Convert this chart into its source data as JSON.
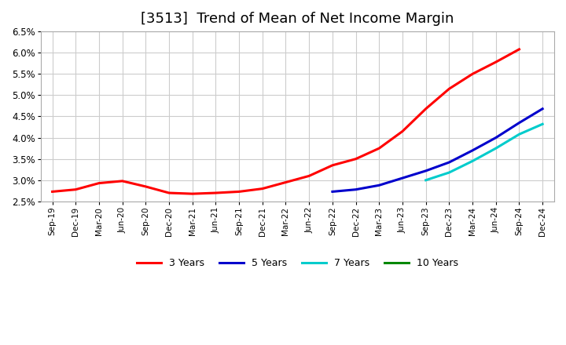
{
  "title": "[3513]  Trend of Mean of Net Income Margin",
  "ylim": [
    2.5,
    6.5
  ],
  "yticks": [
    2.5,
    3.0,
    3.5,
    4.0,
    4.5,
    5.0,
    5.5,
    6.0,
    6.5
  ],
  "x_labels": [
    "Sep-19",
    "Dec-19",
    "Mar-20",
    "Jun-20",
    "Sep-20",
    "Dec-20",
    "Mar-21",
    "Jun-21",
    "Sep-21",
    "Dec-21",
    "Mar-22",
    "Jun-22",
    "Sep-22",
    "Dec-22",
    "Mar-23",
    "Jun-23",
    "Sep-23",
    "Dec-23",
    "Mar-24",
    "Jun-24",
    "Sep-24",
    "Dec-24"
  ],
  "series": {
    "3 Years": {
      "color": "#FF0000",
      "values": [
        2.73,
        2.78,
        2.93,
        2.98,
        2.85,
        2.7,
        2.68,
        2.7,
        2.73,
        2.8,
        2.95,
        3.1,
        3.35,
        3.5,
        3.75,
        4.15,
        4.68,
        5.15,
        5.5,
        5.78,
        6.08,
        null
      ]
    },
    "5 Years": {
      "color": "#0000CC",
      "values": [
        null,
        null,
        null,
        null,
        null,
        null,
        null,
        null,
        null,
        null,
        null,
        null,
        2.73,
        2.78,
        2.88,
        3.05,
        3.22,
        3.42,
        3.7,
        4.0,
        4.35,
        4.68
      ]
    },
    "7 Years": {
      "color": "#00CCCC",
      "values": [
        null,
        null,
        null,
        null,
        null,
        null,
        null,
        null,
        null,
        null,
        null,
        null,
        null,
        null,
        null,
        null,
        3.0,
        3.18,
        3.45,
        3.75,
        4.08,
        4.32
      ]
    },
    "10 Years": {
      "color": "#008800",
      "values": [
        null,
        null,
        null,
        null,
        null,
        null,
        null,
        null,
        null,
        null,
        null,
        null,
        null,
        null,
        null,
        null,
        null,
        null,
        null,
        null,
        null,
        null
      ]
    }
  },
  "background_color": "#FFFFFF",
  "grid_color": "#CCCCCC",
  "title_fontsize": 13
}
